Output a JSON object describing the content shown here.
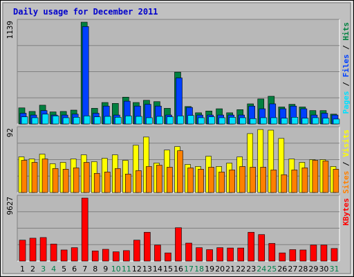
{
  "chart_data": {
    "type": "bar",
    "title": "Daily usage for December 2011",
    "categories": [
      "1",
      "2",
      "3",
      "4",
      "5",
      "6",
      "7",
      "8",
      "9",
      "10",
      "11",
      "12",
      "13",
      "14",
      "15",
      "16",
      "17",
      "18",
      "19",
      "20",
      "21",
      "22",
      "23",
      "24",
      "25",
      "26",
      "27",
      "28",
      "29",
      "30",
      "31"
    ],
    "weekend_days": [
      "3",
      "4",
      "10",
      "11",
      "17",
      "18",
      "24",
      "25",
      "31"
    ],
    "panels": {
      "hits_files_pages": {
        "max_label": "1139",
        "ylim": [
          0,
          1139
        ],
        "right_label": {
          "pages": "Pages",
          "files": "Files",
          "hits": "Hits",
          "sep": " / "
        },
        "series": [
          {
            "name": "Hits",
            "values": [
              180,
              140,
              210,
              135,
              140,
              155,
              1139,
              175,
              240,
              230,
              300,
              240,
              265,
              250,
              175,
              580,
              195,
              125,
              145,
              170,
              125,
              160,
              225,
              280,
              310,
              190,
              220,
              190,
              150,
              150,
              110
            ]
          },
          {
            "name": "Files",
            "values": [
              120,
              100,
              150,
              100,
              100,
              110,
              1090,
              120,
              200,
              100,
              255,
              200,
              220,
              200,
              100,
              515,
              185,
              100,
              100,
              100,
              100,
              100,
              200,
              170,
              225,
              170,
              200,
              170,
              100,
              120,
              100
            ]
          },
          {
            "name": "Pages",
            "values": [
              80,
              70,
              110,
              90,
              70,
              75,
              90,
              80,
              85,
              75,
              90,
              85,
              70,
              85,
              80,
              90,
              95,
              70,
              80,
              70,
              75,
              70,
              60,
              70,
              70,
              65,
              75,
              65,
              70,
              65,
              55
            ]
          }
        ]
      },
      "visits_sites": {
        "max_label": "92",
        "ylim": [
          0,
          92
        ],
        "right_label": {
          "sites": "Sites",
          "visits": "Visits",
          "sep": " / "
        },
        "series": [
          {
            "name": "Visits",
            "values": [
              52,
              49,
              56,
              42,
              44,
              49,
              55,
              45,
              50,
              55,
              47,
              69,
              81,
              43,
              62,
              67,
              41,
              38,
              53,
              38,
              43,
              52,
              86,
              92,
              91,
              79,
              49,
              44,
              48,
              48,
              38
            ]
          },
          {
            "name": "Sites",
            "values": [
              47,
              44,
              49,
              35,
              34,
              36,
              44,
              28,
              30,
              35,
              27,
              32,
              38,
              40,
              37,
              61,
              36,
              34,
              37,
              30,
              33,
              38,
              37,
              37,
              33,
              26,
              33,
              36,
              47,
              46,
              34
            ]
          }
        ]
      },
      "kbytes": {
        "max_label": "9627",
        "ylim": [
          0,
          9627
        ],
        "right_label": {
          "kbytes": "KBytes"
        },
        "series": [
          {
            "name": "KBytes",
            "values": [
              3200,
              3500,
              3600,
              2600,
              1700,
              2050,
              9627,
              1550,
              1800,
              1420,
              1600,
              3200,
              4400,
              2450,
              1250,
              5100,
              2750,
              2050,
              1750,
              2050,
              2000,
              2000,
              4400,
              4050,
              2700,
              1250,
              1750,
              1700,
              2450,
              2450,
              1920
            ]
          }
        ]
      }
    },
    "grid": true
  },
  "colors": {
    "background": "#c0c0c0",
    "plot_background": "#b8b8b8",
    "grid": "#808080",
    "title": "#0000cc",
    "hits": "#008040",
    "files": "#0040ff",
    "pages": "#00e0ff",
    "visits": "#ffff00",
    "sites": "#ff8000",
    "kbytes": "#ff0000",
    "weekend_label": "#00804a",
    "weekday_label": "#000000"
  }
}
